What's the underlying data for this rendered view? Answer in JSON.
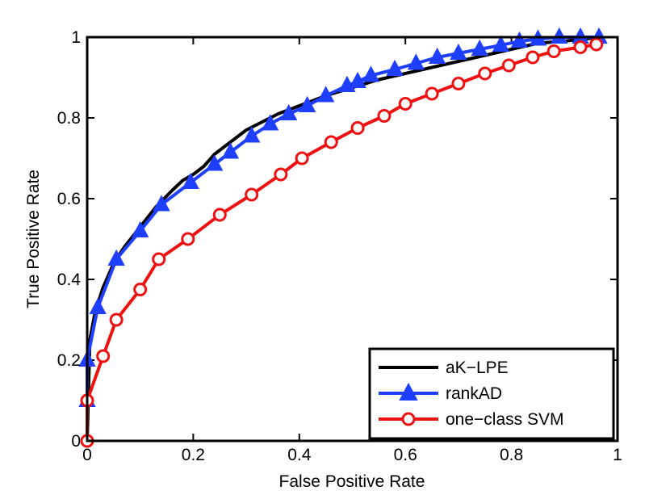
{
  "chart_data": {
    "type": "line",
    "title": "",
    "xlabel": "False Positive Rate",
    "ylabel": "True Positive Rate",
    "xlim": [
      0,
      1
    ],
    "ylim": [
      0,
      1
    ],
    "xticks": [
      0,
      0.2,
      0.4,
      0.6,
      0.8,
      1
    ],
    "yticks": [
      0,
      0.2,
      0.4,
      0.6,
      0.8,
      1
    ],
    "xtick_labels": [
      "0",
      "0.2",
      "0.4",
      "0.6",
      "0.8",
      "1"
    ],
    "ytick_labels": [
      "0",
      "0.2",
      "0.4",
      "0.6",
      "0.8",
      "1"
    ],
    "grid": false,
    "legend_position": "bottom-right",
    "series": [
      {
        "name": "aK−LPE",
        "color": "#000000",
        "marker": "none",
        "x": [
          0,
          0.005,
          0.015,
          0.03,
          0.05,
          0.07,
          0.1,
          0.13,
          0.16,
          0.18,
          0.2,
          0.22,
          0.24,
          0.27,
          0.3,
          0.33,
          0.36,
          0.4,
          0.45,
          0.5,
          0.55,
          0.6,
          0.65,
          0.7,
          0.75,
          0.8,
          0.85,
          0.9,
          0.93,
          0.96,
          0.97
        ],
        "y": [
          0,
          0.25,
          0.32,
          0.38,
          0.44,
          0.48,
          0.53,
          0.58,
          0.62,
          0.645,
          0.66,
          0.68,
          0.71,
          0.74,
          0.77,
          0.79,
          0.81,
          0.83,
          0.855,
          0.875,
          0.895,
          0.91,
          0.925,
          0.94,
          0.955,
          0.97,
          0.985,
          0.99,
          0.995,
          0.998,
          1.0
        ]
      },
      {
        "name": "rankAD",
        "color": "#1f3fff",
        "marker": "triangle",
        "x": [
          0,
          0,
          0.02,
          0.055,
          0.1,
          0.14,
          0.195,
          0.24,
          0.27,
          0.31,
          0.345,
          0.38,
          0.415,
          0.45,
          0.49,
          0.51,
          0.535,
          0.58,
          0.62,
          0.66,
          0.7,
          0.74,
          0.78,
          0.815,
          0.85,
          0.89,
          0.93,
          0.965
        ],
        "y": [
          0.1,
          0.2,
          0.33,
          0.45,
          0.52,
          0.585,
          0.64,
          0.685,
          0.715,
          0.755,
          0.785,
          0.81,
          0.83,
          0.855,
          0.88,
          0.89,
          0.905,
          0.92,
          0.935,
          0.95,
          0.96,
          0.97,
          0.98,
          0.99,
          0.995,
          1.0,
          1.0,
          1.0
        ]
      },
      {
        "name": "one−class SVM",
        "color": "#ee1111",
        "marker": "circle",
        "x": [
          0,
          0,
          0.03,
          0.055,
          0.1,
          0.135,
          0.19,
          0.25,
          0.31,
          0.365,
          0.405,
          0.46,
          0.51,
          0.56,
          0.6,
          0.65,
          0.7,
          0.75,
          0.795,
          0.84,
          0.88,
          0.93,
          0.96
        ],
        "y": [
          0,
          0.1,
          0.21,
          0.3,
          0.375,
          0.45,
          0.5,
          0.56,
          0.61,
          0.66,
          0.7,
          0.74,
          0.775,
          0.805,
          0.835,
          0.86,
          0.885,
          0.91,
          0.93,
          0.95,
          0.965,
          0.975,
          0.982
        ]
      }
    ]
  }
}
